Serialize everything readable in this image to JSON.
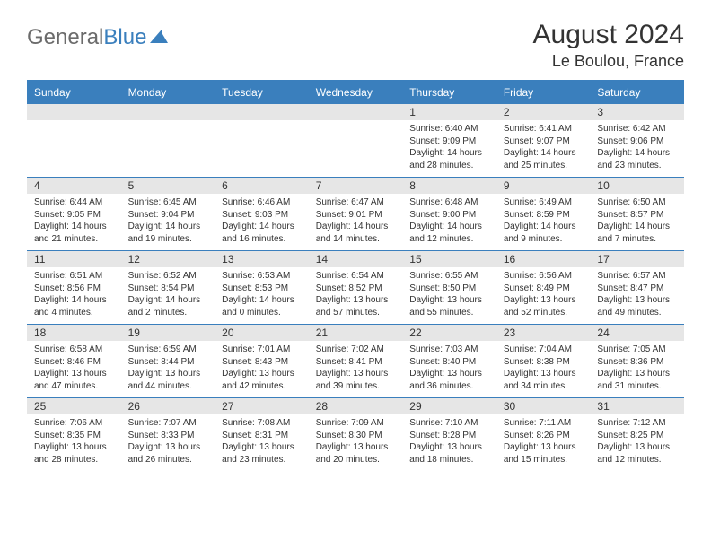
{
  "logo": {
    "text1": "General",
    "text2": "Blue"
  },
  "title": {
    "month": "August 2024",
    "location": "Le Boulou, France"
  },
  "colors": {
    "accent": "#3a7fbd",
    "datebar_bg": "#e6e6e6",
    "text": "#333333",
    "logo_gray": "#6b6b6b"
  },
  "daynames": [
    "Sunday",
    "Monday",
    "Tuesday",
    "Wednesday",
    "Thursday",
    "Friday",
    "Saturday"
  ],
  "weeks": [
    {
      "nums": [
        "",
        "",
        "",
        "",
        "1",
        "2",
        "3"
      ],
      "cells": [
        null,
        null,
        null,
        null,
        {
          "sunrise": "6:40 AM",
          "sunset": "9:09 PM",
          "daylight": "14 hours and 28 minutes."
        },
        {
          "sunrise": "6:41 AM",
          "sunset": "9:07 PM",
          "daylight": "14 hours and 25 minutes."
        },
        {
          "sunrise": "6:42 AM",
          "sunset": "9:06 PM",
          "daylight": "14 hours and 23 minutes."
        }
      ]
    },
    {
      "nums": [
        "4",
        "5",
        "6",
        "7",
        "8",
        "9",
        "10"
      ],
      "cells": [
        {
          "sunrise": "6:44 AM",
          "sunset": "9:05 PM",
          "daylight": "14 hours and 21 minutes."
        },
        {
          "sunrise": "6:45 AM",
          "sunset": "9:04 PM",
          "daylight": "14 hours and 19 minutes."
        },
        {
          "sunrise": "6:46 AM",
          "sunset": "9:03 PM",
          "daylight": "14 hours and 16 minutes."
        },
        {
          "sunrise": "6:47 AM",
          "sunset": "9:01 PM",
          "daylight": "14 hours and 14 minutes."
        },
        {
          "sunrise": "6:48 AM",
          "sunset": "9:00 PM",
          "daylight": "14 hours and 12 minutes."
        },
        {
          "sunrise": "6:49 AM",
          "sunset": "8:59 PM",
          "daylight": "14 hours and 9 minutes."
        },
        {
          "sunrise": "6:50 AM",
          "sunset": "8:57 PM",
          "daylight": "14 hours and 7 minutes."
        }
      ]
    },
    {
      "nums": [
        "11",
        "12",
        "13",
        "14",
        "15",
        "16",
        "17"
      ],
      "cells": [
        {
          "sunrise": "6:51 AM",
          "sunset": "8:56 PM",
          "daylight": "14 hours and 4 minutes."
        },
        {
          "sunrise": "6:52 AM",
          "sunset": "8:54 PM",
          "daylight": "14 hours and 2 minutes."
        },
        {
          "sunrise": "6:53 AM",
          "sunset": "8:53 PM",
          "daylight": "14 hours and 0 minutes."
        },
        {
          "sunrise": "6:54 AM",
          "sunset": "8:52 PM",
          "daylight": "13 hours and 57 minutes."
        },
        {
          "sunrise": "6:55 AM",
          "sunset": "8:50 PM",
          "daylight": "13 hours and 55 minutes."
        },
        {
          "sunrise": "6:56 AM",
          "sunset": "8:49 PM",
          "daylight": "13 hours and 52 minutes."
        },
        {
          "sunrise": "6:57 AM",
          "sunset": "8:47 PM",
          "daylight": "13 hours and 49 minutes."
        }
      ]
    },
    {
      "nums": [
        "18",
        "19",
        "20",
        "21",
        "22",
        "23",
        "24"
      ],
      "cells": [
        {
          "sunrise": "6:58 AM",
          "sunset": "8:46 PM",
          "daylight": "13 hours and 47 minutes."
        },
        {
          "sunrise": "6:59 AM",
          "sunset": "8:44 PM",
          "daylight": "13 hours and 44 minutes."
        },
        {
          "sunrise": "7:01 AM",
          "sunset": "8:43 PM",
          "daylight": "13 hours and 42 minutes."
        },
        {
          "sunrise": "7:02 AM",
          "sunset": "8:41 PM",
          "daylight": "13 hours and 39 minutes."
        },
        {
          "sunrise": "7:03 AM",
          "sunset": "8:40 PM",
          "daylight": "13 hours and 36 minutes."
        },
        {
          "sunrise": "7:04 AM",
          "sunset": "8:38 PM",
          "daylight": "13 hours and 34 minutes."
        },
        {
          "sunrise": "7:05 AM",
          "sunset": "8:36 PM",
          "daylight": "13 hours and 31 minutes."
        }
      ]
    },
    {
      "nums": [
        "25",
        "26",
        "27",
        "28",
        "29",
        "30",
        "31"
      ],
      "cells": [
        {
          "sunrise": "7:06 AM",
          "sunset": "8:35 PM",
          "daylight": "13 hours and 28 minutes."
        },
        {
          "sunrise": "7:07 AM",
          "sunset": "8:33 PM",
          "daylight": "13 hours and 26 minutes."
        },
        {
          "sunrise": "7:08 AM",
          "sunset": "8:31 PM",
          "daylight": "13 hours and 23 minutes."
        },
        {
          "sunrise": "7:09 AM",
          "sunset": "8:30 PM",
          "daylight": "13 hours and 20 minutes."
        },
        {
          "sunrise": "7:10 AM",
          "sunset": "8:28 PM",
          "daylight": "13 hours and 18 minutes."
        },
        {
          "sunrise": "7:11 AM",
          "sunset": "8:26 PM",
          "daylight": "13 hours and 15 minutes."
        },
        {
          "sunrise": "7:12 AM",
          "sunset": "8:25 PM",
          "daylight": "13 hours and 12 minutes."
        }
      ]
    }
  ],
  "labels": {
    "sunrise": "Sunrise:",
    "sunset": "Sunset:",
    "daylight": "Daylight:"
  }
}
